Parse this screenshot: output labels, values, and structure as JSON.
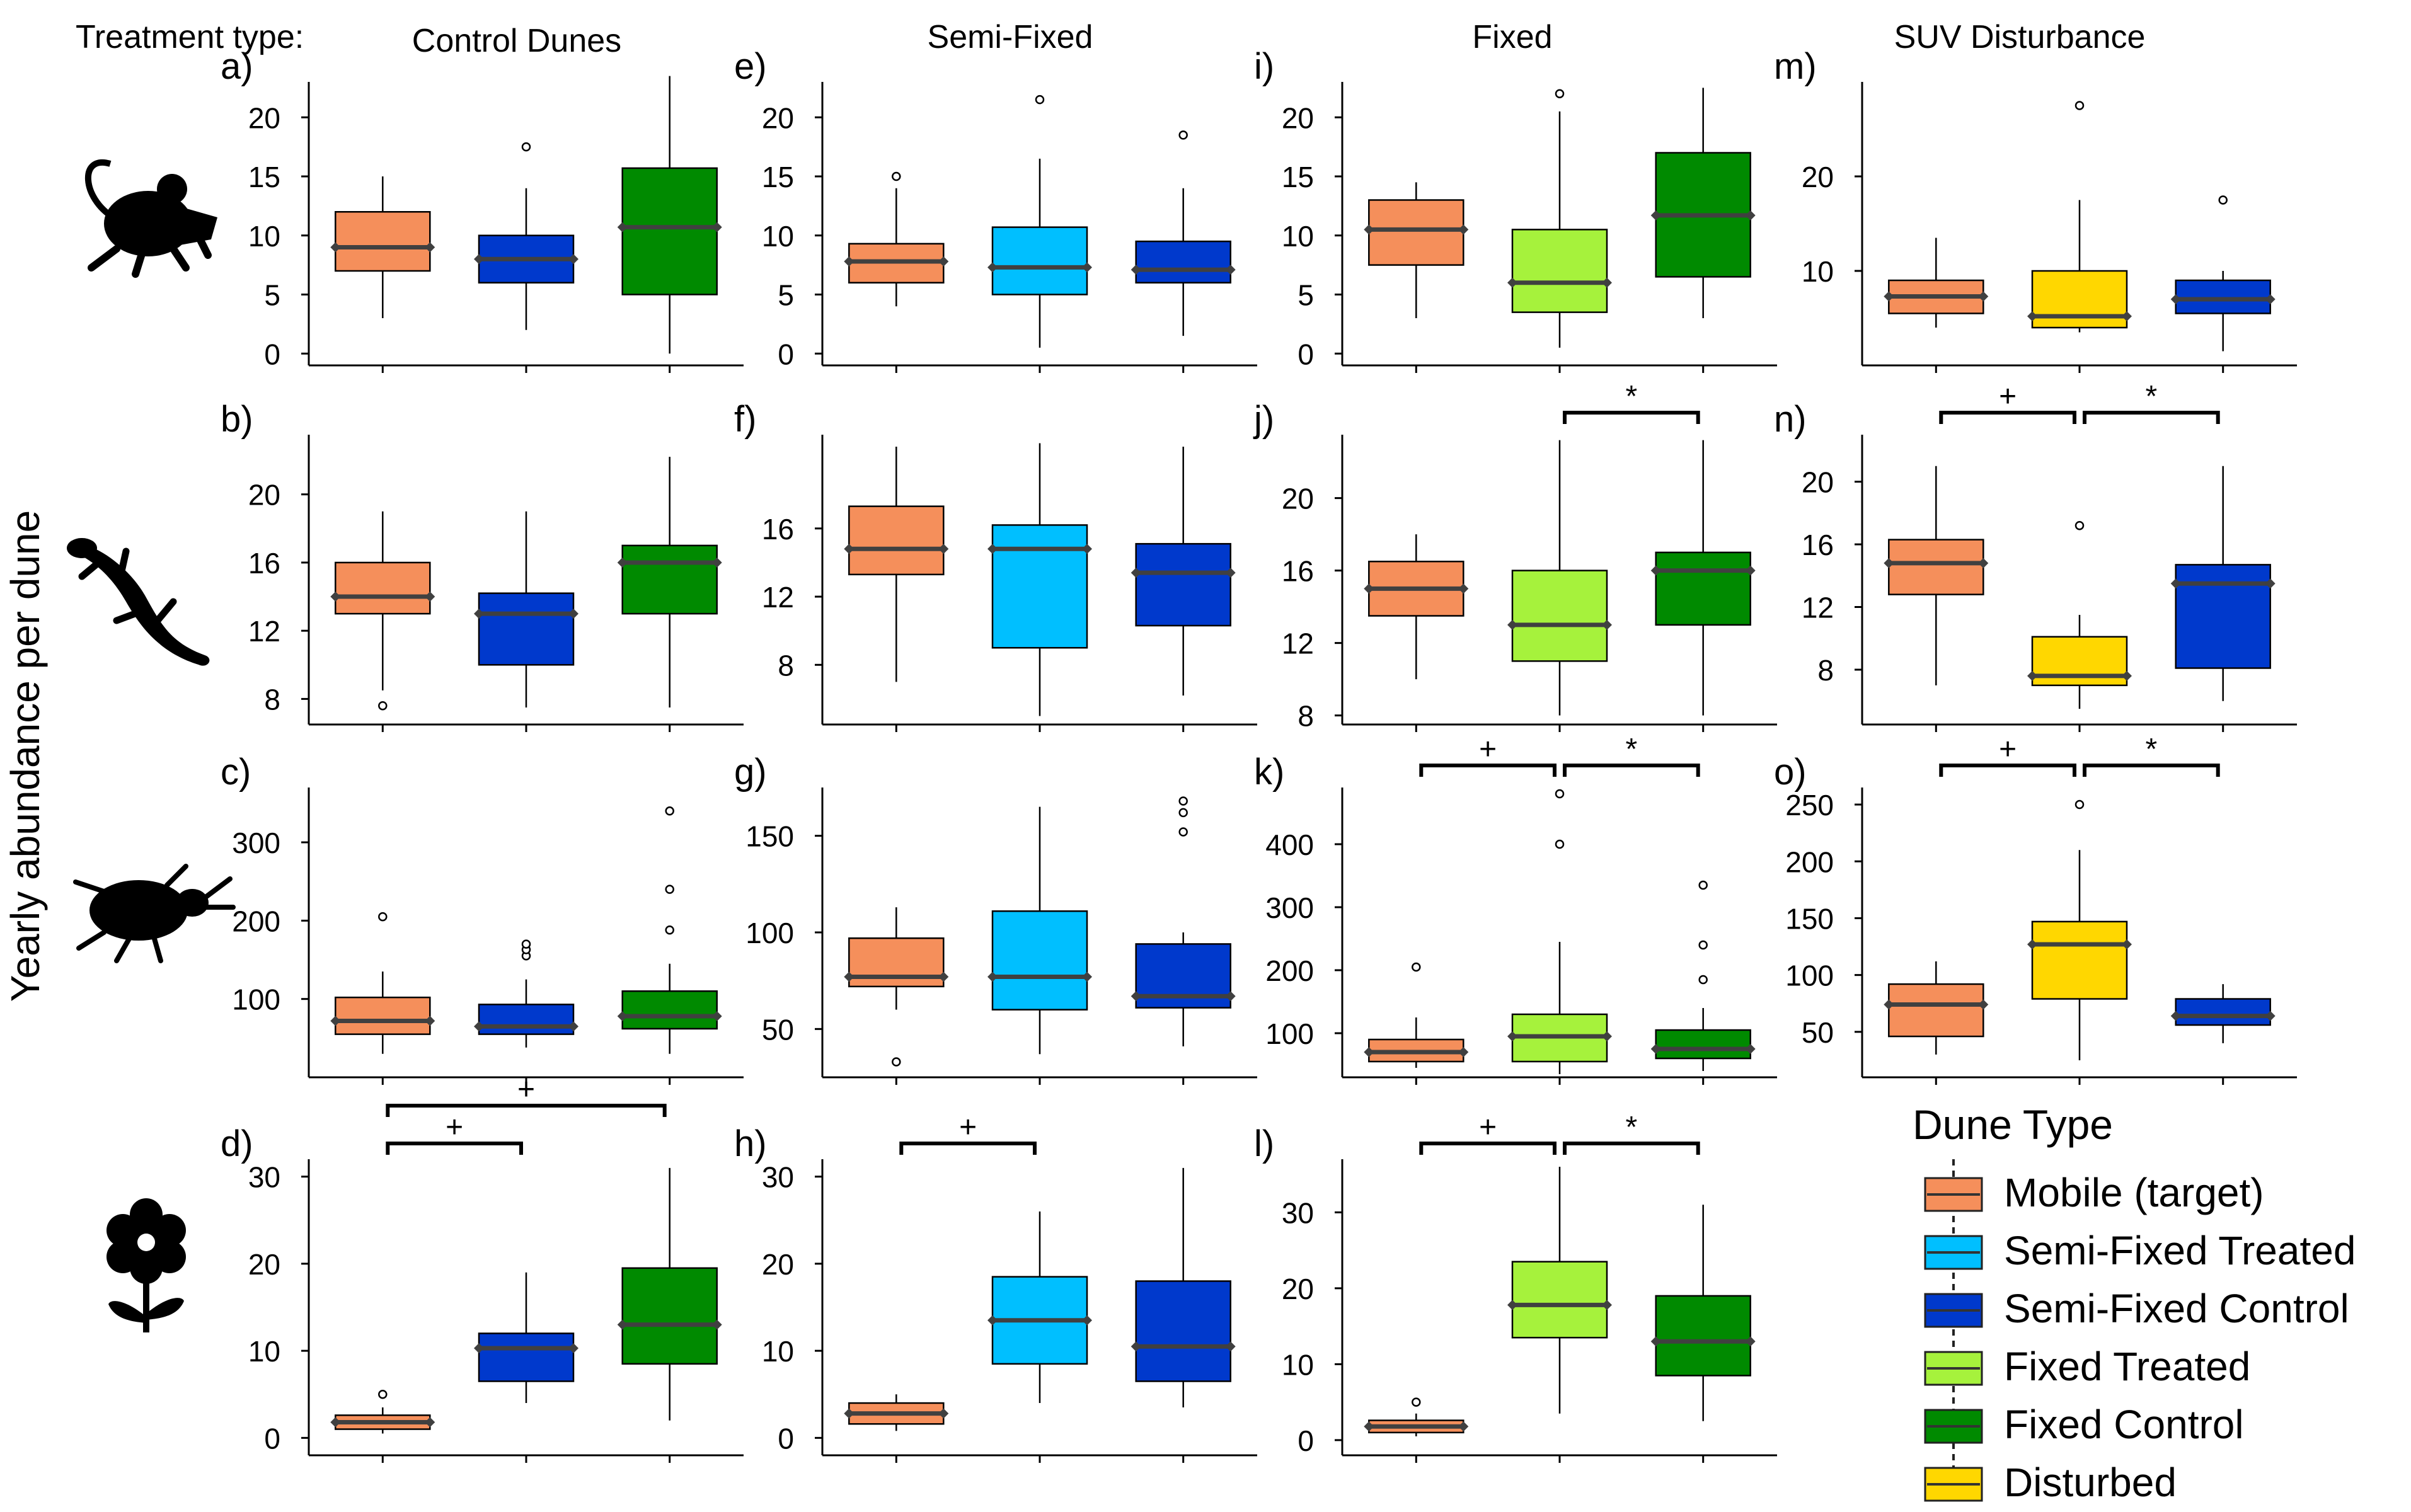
{
  "figure": {
    "y_axis_label": "Yearly abundance per dune",
    "treatment_label": "Treatment type:"
  },
  "columns": [
    "Control Dunes",
    "Semi-Fixed",
    "Fixed",
    "SUV Disturbance"
  ],
  "rows": [
    {
      "taxon": "rodents",
      "icon": "mouse-icon"
    },
    {
      "taxon": "reptiles",
      "icon": "lizard-icon"
    },
    {
      "taxon": "arthropods",
      "icon": "beetle-icon"
    },
    {
      "taxon": "plants",
      "icon": "flower-icon"
    }
  ],
  "colors": {
    "mobile": "#F58F5B",
    "semi_treated": "#00BFFF",
    "semi_control": "#0039CC",
    "fixed_treated": "#A6F23C",
    "fixed_control": "#008A00",
    "disturbed": "#FFD700",
    "median": "#404040"
  },
  "legend": {
    "title": "Dune Type",
    "items": [
      {
        "label": "Mobile (target)",
        "color": "#F58F5B"
      },
      {
        "label": "Semi-Fixed Treated",
        "color": "#00BFFF"
      },
      {
        "label": "Semi-Fixed Control",
        "color": "#0039CC"
      },
      {
        "label": "Fixed Treated",
        "color": "#A6F23C"
      },
      {
        "label": "Fixed Control",
        "color": "#008A00"
      },
      {
        "label": "Disturbed",
        "color": "#FFD700"
      }
    ]
  },
  "chart_data": [
    {
      "panel": "a)",
      "type": "box",
      "column": "Control Dunes",
      "taxon": "rodents",
      "yticks": [
        0,
        5,
        10,
        15,
        20
      ],
      "ylim": [
        -1,
        23
      ],
      "boxes": [
        {
          "group": "Mobile (target)",
          "color": "#F58F5B",
          "whisker_low": 3,
          "q1": 7,
          "median": 9,
          "q3": 12,
          "whisker_high": 15,
          "outliers": []
        },
        {
          "group": "Semi-Fixed Control",
          "color": "#0039CC",
          "whisker_low": 2,
          "q1": 6,
          "median": 8,
          "q3": 10,
          "whisker_high": 14,
          "outliers": [
            17.5
          ]
        },
        {
          "group": "Fixed Control",
          "color": "#008A00",
          "whisker_low": 0,
          "q1": 5,
          "median": 10.7,
          "q3": 15.7,
          "whisker_high": 23.5,
          "outliers": []
        }
      ],
      "significance": []
    },
    {
      "panel": "e)",
      "type": "box",
      "column": "Semi-Fixed",
      "taxon": "rodents",
      "yticks": [
        0,
        5,
        10,
        15,
        20
      ],
      "ylim": [
        -1,
        23
      ],
      "boxes": [
        {
          "group": "Mobile (target)",
          "color": "#F58F5B",
          "whisker_low": 4,
          "q1": 6,
          "median": 7.8,
          "q3": 9.3,
          "whisker_high": 14,
          "outliers": [
            15
          ]
        },
        {
          "group": "Semi-Fixed Treated",
          "color": "#00BFFF",
          "whisker_low": 0.5,
          "q1": 5,
          "median": 7.3,
          "q3": 10.7,
          "whisker_high": 16.5,
          "outliers": [
            21.5
          ]
        },
        {
          "group": "Semi-Fixed Control",
          "color": "#0039CC",
          "whisker_low": 1.5,
          "q1": 6,
          "median": 7.1,
          "q3": 9.5,
          "whisker_high": 14,
          "outliers": [
            18.5
          ]
        }
      ],
      "significance": []
    },
    {
      "panel": "i)",
      "type": "box",
      "column": "Fixed",
      "taxon": "rodents",
      "yticks": [
        0,
        5,
        10,
        15,
        20
      ],
      "ylim": [
        -1,
        23
      ],
      "boxes": [
        {
          "group": "Mobile (target)",
          "color": "#F58F5B",
          "whisker_low": 3,
          "q1": 7.5,
          "median": 10.5,
          "q3": 13,
          "whisker_high": 14.5,
          "outliers": []
        },
        {
          "group": "Fixed Treated",
          "color": "#A6F23C",
          "whisker_low": 0.5,
          "q1": 3.5,
          "median": 6,
          "q3": 10.5,
          "whisker_high": 20.5,
          "outliers": [
            22
          ]
        },
        {
          "group": "Fixed Control",
          "color": "#008A00",
          "whisker_low": 3,
          "q1": 6.5,
          "median": 11.7,
          "q3": 17,
          "whisker_high": 22.5,
          "outliers": []
        }
      ],
      "significance": []
    },
    {
      "panel": "m)",
      "type": "box",
      "column": "SUV Disturbance",
      "taxon": "rodents",
      "yticks": [
        10,
        20
      ],
      "ylim": [
        0,
        30
      ],
      "boxes": [
        {
          "group": "Mobile (target)",
          "color": "#F58F5B",
          "whisker_low": 4,
          "q1": 5.5,
          "median": 7.3,
          "q3": 9,
          "whisker_high": 13.5,
          "outliers": []
        },
        {
          "group": "Disturbed",
          "color": "#FFD700",
          "whisker_low": 3.5,
          "q1": 4,
          "median": 5.2,
          "q3": 10,
          "whisker_high": 17.5,
          "outliers": [
            27.5
          ]
        },
        {
          "group": "Semi-Fixed Control",
          "color": "#0039CC",
          "whisker_low": 1.5,
          "q1": 5.5,
          "median": 7,
          "q3": 9,
          "whisker_high": 10,
          "outliers": [
            17.5
          ]
        }
      ],
      "significance": []
    },
    {
      "panel": "b)",
      "type": "box",
      "column": "Control Dunes",
      "taxon": "reptiles",
      "yticks": [
        8,
        12,
        16,
        20
      ],
      "ylim": [
        6.5,
        23.5
      ],
      "boxes": [
        {
          "group": "Mobile (target)",
          "color": "#F58F5B",
          "whisker_low": 8.5,
          "q1": 13,
          "median": 14,
          "q3": 16,
          "whisker_high": 19,
          "outliers": [
            7.6
          ]
        },
        {
          "group": "Semi-Fixed Control",
          "color": "#0039CC",
          "whisker_low": 7.5,
          "q1": 10,
          "median": 13,
          "q3": 14.2,
          "whisker_high": 19,
          "outliers": []
        },
        {
          "group": "Fixed Control",
          "color": "#008A00",
          "whisker_low": 7.5,
          "q1": 13,
          "median": 16,
          "q3": 17,
          "whisker_high": 22.2,
          "outliers": []
        }
      ],
      "significance": []
    },
    {
      "panel": "f)",
      "type": "box",
      "column": "Semi-Fixed",
      "taxon": "reptiles",
      "yticks": [
        8,
        12,
        16
      ],
      "ylim": [
        4.5,
        21.5
      ],
      "boxes": [
        {
          "group": "Mobile (target)",
          "color": "#F58F5B",
          "whisker_low": 7,
          "q1": 13.3,
          "median": 14.8,
          "q3": 17.3,
          "whisker_high": 20.8,
          "outliers": []
        },
        {
          "group": "Semi-Fixed Treated",
          "color": "#00BFFF",
          "whisker_low": 5,
          "q1": 9,
          "median": 14.8,
          "q3": 16.2,
          "whisker_high": 21,
          "outliers": []
        },
        {
          "group": "Semi-Fixed Control",
          "color": "#0039CC",
          "whisker_low": 6.2,
          "q1": 10.3,
          "median": 13.4,
          "q3": 15.1,
          "whisker_high": 20.8,
          "outliers": []
        }
      ],
      "significance": []
    },
    {
      "panel": "j)",
      "type": "box",
      "column": "Fixed",
      "taxon": "reptiles",
      "yticks": [
        8,
        12,
        16,
        20
      ],
      "ylim": [
        7.5,
        23.5
      ],
      "boxes": [
        {
          "group": "Mobile (target)",
          "color": "#F58F5B",
          "whisker_low": 10,
          "q1": 13.5,
          "median": 15,
          "q3": 16.5,
          "whisker_high": 18,
          "outliers": []
        },
        {
          "group": "Fixed Treated",
          "color": "#A6F23C",
          "whisker_low": 8,
          "q1": 11,
          "median": 13,
          "q3": 16,
          "whisker_high": 23.2,
          "outliers": []
        },
        {
          "group": "Fixed Control",
          "color": "#008A00",
          "whisker_low": 8,
          "q1": 13,
          "median": 16,
          "q3": 17,
          "whisker_high": 23.2,
          "outliers": []
        }
      ],
      "significance": [
        {
          "from": 1,
          "to": 2,
          "label": "*"
        }
      ]
    },
    {
      "panel": "n)",
      "type": "box",
      "column": "SUV Disturbance",
      "taxon": "reptiles",
      "yticks": [
        8,
        12,
        16,
        20
      ],
      "ylim": [
        4.5,
        23
      ],
      "boxes": [
        {
          "group": "Mobile (target)",
          "color": "#F58F5B",
          "whisker_low": 7,
          "q1": 12.8,
          "median": 14.8,
          "q3": 16.3,
          "whisker_high": 21,
          "outliers": []
        },
        {
          "group": "Disturbed",
          "color": "#FFD700",
          "whisker_low": 5.5,
          "q1": 7,
          "median": 7.6,
          "q3": 10.1,
          "whisker_high": 11.5,
          "outliers": [
            17.2
          ]
        },
        {
          "group": "Semi-Fixed Control",
          "color": "#0039CC",
          "whisker_low": 6,
          "q1": 8.1,
          "median": 13.5,
          "q3": 14.7,
          "whisker_high": 21,
          "outliers": []
        }
      ],
      "significance": [
        {
          "from": 0,
          "to": 1,
          "label": "+"
        },
        {
          "from": 1,
          "to": 2,
          "label": "*"
        }
      ]
    },
    {
      "panel": "c)",
      "type": "box",
      "column": "Control Dunes",
      "taxon": "arthropods",
      "yticks": [
        100,
        200,
        300
      ],
      "ylim": [
        0,
        370
      ],
      "boxes": [
        {
          "group": "Mobile (target)",
          "color": "#F58F5B",
          "whisker_low": 30,
          "q1": 55,
          "median": 72,
          "q3": 102,
          "whisker_high": 135,
          "outliers": [
            205
          ]
        },
        {
          "group": "Semi-Fixed Control",
          "color": "#0039CC",
          "whisker_low": 38,
          "q1": 55,
          "median": 65,
          "q3": 93,
          "whisker_high": 125,
          "outliers": [
            155,
            163,
            170
          ]
        },
        {
          "group": "Fixed Control",
          "color": "#008A00",
          "whisker_low": 30,
          "q1": 62,
          "median": 78,
          "q3": 110,
          "whisker_high": 145,
          "outliers": [
            188,
            240,
            340
          ]
        }
      ],
      "significance": []
    },
    {
      "panel": "g)",
      "type": "box",
      "column": "Semi-Fixed",
      "taxon": "arthropods",
      "yticks": [
        50,
        100,
        150
      ],
      "ylim": [
        25,
        175
      ],
      "boxes": [
        {
          "group": "Mobile (target)",
          "color": "#F58F5B",
          "whisker_low": 60,
          "q1": 72,
          "median": 77,
          "q3": 97,
          "whisker_high": 113,
          "outliers": [
            33
          ]
        },
        {
          "group": "Semi-Fixed Treated",
          "color": "#00BFFF",
          "whisker_low": 37,
          "q1": 60,
          "median": 77,
          "q3": 111,
          "whisker_high": 165,
          "outliers": []
        },
        {
          "group": "Semi-Fixed Control",
          "color": "#0039CC",
          "whisker_low": 41,
          "q1": 61,
          "median": 67,
          "q3": 94,
          "whisker_high": 100,
          "outliers": [
            152,
            162,
            168
          ]
        }
      ],
      "significance": []
    },
    {
      "panel": "k)",
      "type": "box",
      "column": "Fixed",
      "taxon": "arthropods",
      "yticks": [
        100,
        200,
        300,
        400
      ],
      "ylim": [
        30,
        490
      ],
      "boxes": [
        {
          "group": "Mobile (target)",
          "color": "#F58F5B",
          "whisker_low": 45,
          "q1": 55,
          "median": 70,
          "q3": 90,
          "whisker_high": 125,
          "outliers": [
            205
          ]
        },
        {
          "group": "Fixed Treated",
          "color": "#A6F23C",
          "whisker_low": 35,
          "q1": 55,
          "median": 95,
          "q3": 130,
          "whisker_high": 245,
          "outliers": [
            400,
            480
          ]
        },
        {
          "group": "Fixed Control",
          "color": "#008A00",
          "whisker_low": 40,
          "q1": 60,
          "median": 75,
          "q3": 105,
          "whisker_high": 140,
          "outliers": [
            185,
            240,
            335
          ]
        }
      ],
      "significance": [
        {
          "from": 0,
          "to": 1,
          "label": "+"
        },
        {
          "from": 1,
          "to": 2,
          "label": "*"
        }
      ]
    },
    {
      "panel": "o)",
      "type": "box",
      "column": "SUV Disturbance",
      "taxon": "arthropods",
      "yticks": [
        50,
        100,
        150,
        200,
        250
      ],
      "ylim": [
        10,
        265
      ],
      "boxes": [
        {
          "group": "Mobile (target)",
          "color": "#F58F5B",
          "whisker_low": 30,
          "q1": 46,
          "median": 74,
          "q3": 92,
          "whisker_high": 112,
          "outliers": []
        },
        {
          "group": "Disturbed",
          "color": "#FFD700",
          "whisker_low": 25,
          "q1": 79,
          "median": 127,
          "q3": 147,
          "whisker_high": 210,
          "outliers": [
            250
          ]
        },
        {
          "group": "Semi-Fixed Control",
          "color": "#0039CC",
          "whisker_low": 40,
          "q1": 56,
          "median": 64,
          "q3": 79,
          "whisker_high": 92,
          "outliers": []
        }
      ],
      "significance": [
        {
          "from": 0,
          "to": 1,
          "label": "+"
        },
        {
          "from": 1,
          "to": 2,
          "label": "*"
        }
      ]
    },
    {
      "panel": "d)",
      "type": "box",
      "column": "Control Dunes",
      "taxon": "plants",
      "yticks": [
        0,
        10,
        20,
        30
      ],
      "ylim": [
        -2,
        32
      ],
      "boxes": [
        {
          "group": "Mobile (target)",
          "color": "#F58F5B",
          "whisker_low": 0.5,
          "q1": 1,
          "median": 1.8,
          "q3": 2.6,
          "whisker_high": 3.5,
          "outliers": [
            5
          ]
        },
        {
          "group": "Semi-Fixed Control",
          "color": "#0039CC",
          "whisker_low": 4,
          "q1": 6.5,
          "median": 10.3,
          "q3": 12,
          "whisker_high": 19,
          "outliers": []
        },
        {
          "group": "Fixed Control",
          "color": "#008A00",
          "whisker_low": 2,
          "q1": 8.5,
          "median": 13,
          "q3": 19.5,
          "whisker_high": 31,
          "outliers": []
        }
      ],
      "significance": [
        {
          "from": 0,
          "to": 2,
          "label": "+",
          "level": 2
        },
        {
          "from": 0,
          "to": 1,
          "label": "+",
          "level": 1
        }
      ]
    },
    {
      "panel": "h)",
      "type": "box",
      "column": "Semi-Fixed",
      "taxon": "plants",
      "yticks": [
        0,
        10,
        20,
        30
      ],
      "ylim": [
        -2,
        32
      ],
      "boxes": [
        {
          "group": "Mobile (target)",
          "color": "#F58F5B",
          "whisker_low": 0.8,
          "q1": 1.6,
          "median": 2.8,
          "q3": 4,
          "whisker_high": 5,
          "outliers": []
        },
        {
          "group": "Semi-Fixed Treated",
          "color": "#00BFFF",
          "whisker_low": 4,
          "q1": 8.5,
          "median": 13.5,
          "q3": 18.5,
          "whisker_high": 26,
          "outliers": []
        },
        {
          "group": "Semi-Fixed Control",
          "color": "#0039CC",
          "whisker_low": 3.5,
          "q1": 6.5,
          "median": 10.5,
          "q3": 18,
          "whisker_high": 31,
          "outliers": []
        }
      ],
      "significance": [
        {
          "from": 0,
          "to": 1,
          "label": "+"
        }
      ]
    },
    {
      "panel": "l)",
      "type": "box",
      "column": "Fixed",
      "taxon": "plants",
      "yticks": [
        0,
        10,
        20,
        30
      ],
      "ylim": [
        -2,
        37
      ],
      "boxes": [
        {
          "group": "Mobile (target)",
          "color": "#F58F5B",
          "whisker_low": 0.5,
          "q1": 1,
          "median": 1.8,
          "q3": 2.6,
          "whisker_high": 3.5,
          "outliers": [
            5
          ]
        },
        {
          "group": "Fixed Treated",
          "color": "#A6F23C",
          "whisker_low": 3.5,
          "q1": 13.5,
          "median": 17.8,
          "q3": 23.5,
          "whisker_high": 36,
          "outliers": []
        },
        {
          "group": "Fixed Control",
          "color": "#008A00",
          "whisker_low": 2.5,
          "q1": 8.5,
          "median": 13,
          "q3": 19,
          "whisker_high": 31,
          "outliers": []
        }
      ],
      "significance": [
        {
          "from": 0,
          "to": 1,
          "label": "+"
        },
        {
          "from": 1,
          "to": 2,
          "label": "*"
        }
      ]
    }
  ]
}
